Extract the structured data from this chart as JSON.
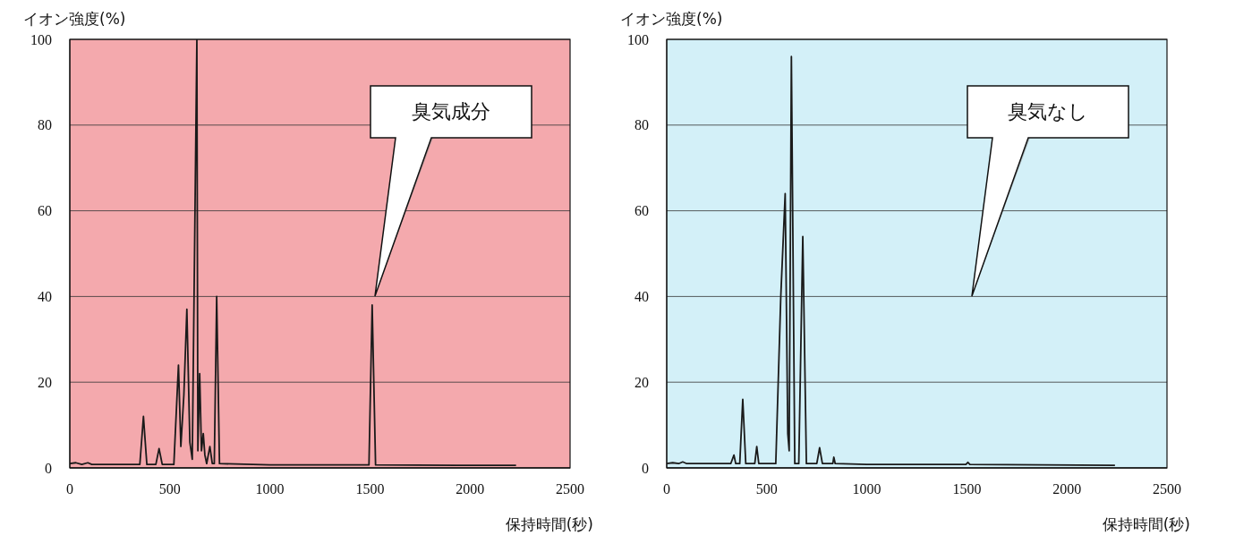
{
  "chart_data": [
    {
      "type": "line",
      "ylabel": "イオン強度(%)",
      "xlabel": "保持時間(秒)",
      "color": "#1a1a1a",
      "grid": "y",
      "xlim": [
        0,
        2500
      ],
      "xticks": [
        0,
        500,
        1000,
        1500,
        2000,
        2500
      ],
      "ylim": [
        0,
        100
      ],
      "yticks": [
        0,
        20,
        40,
        60,
        80,
        100
      ],
      "x": [
        0,
        30,
        60,
        90,
        110,
        350,
        368,
        385,
        430,
        446,
        462,
        520,
        543,
        555,
        570,
        585,
        600,
        612,
        635,
        640,
        649,
        658,
        667,
        675,
        684,
        700,
        712,
        722,
        734,
        748,
        1000,
        1495,
        1511,
        1528,
        2000,
        2230
      ],
      "values": [
        1,
        1.2,
        0.8,
        1.2,
        0.8,
        0.8,
        12,
        0.8,
        0.8,
        4.5,
        0.8,
        0.8,
        24,
        5,
        17,
        37,
        6,
        2,
        100,
        4,
        22,
        4,
        8,
        3,
        1,
        5,
        1,
        1,
        40,
        1,
        0.7,
        0.7,
        38,
        0.7,
        0.6,
        0.6
      ],
      "annotations": [
        "臭気成分"
      ]
    },
    {
      "type": "line",
      "ylabel": "イオン強度(%)",
      "xlabel": "保持時間(秒)",
      "color": "#1a1a1a",
      "grid": "y",
      "xlim": [
        0,
        2500
      ],
      "xticks": [
        0,
        500,
        1000,
        1500,
        2000,
        2500
      ],
      "ylim": [
        0,
        100
      ],
      "yticks": [
        0,
        20,
        40,
        60,
        80,
        100
      ],
      "x": [
        0,
        30,
        60,
        80,
        100,
        320,
        336,
        345,
        365,
        380,
        395,
        440,
        450,
        460,
        545,
        570,
        592,
        605,
        612,
        623,
        640,
        660,
        680,
        698,
        750,
        764,
        778,
        830,
        835,
        842,
        1000,
        1495,
        1505,
        1515,
        2240
      ],
      "values": [
        1,
        1.2,
        1,
        1.4,
        1,
        1,
        3,
        1,
        1,
        16,
        1,
        1,
        5,
        1,
        1,
        40,
        64,
        8,
        4,
        96,
        1,
        1,
        54,
        1,
        1,
        4.7,
        1,
        1,
        2.5,
        1,
        0.8,
        0.8,
        1.3,
        0.8,
        0.6
      ],
      "annotations": [
        "臭気なし"
      ]
    }
  ]
}
